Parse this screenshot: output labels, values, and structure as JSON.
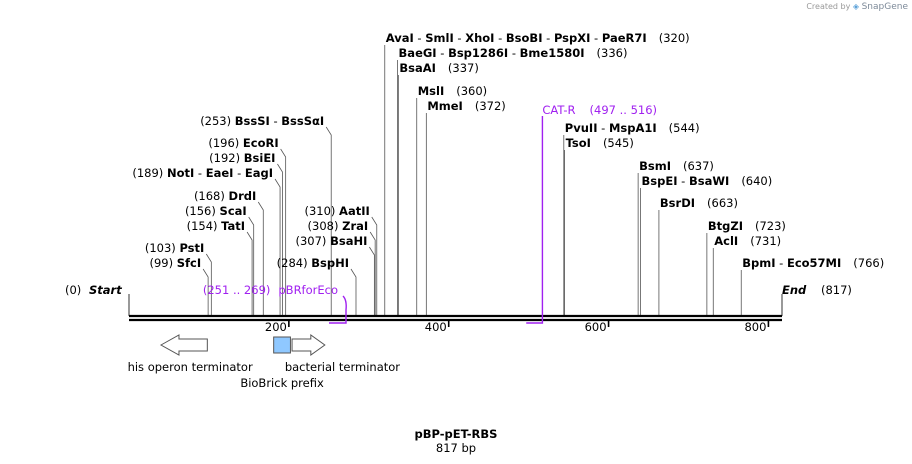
{
  "credit": {
    "prefix": "Created by",
    "brand": "SnapGene"
  },
  "map": {
    "title": "pBP-pET-RBS",
    "length_label": "817 bp",
    "total_bp": 817,
    "ticks": [
      "200",
      "400",
      "600",
      "800"
    ],
    "tick_values": [
      200,
      400,
      600,
      800
    ],
    "start": {
      "pos": "(0)",
      "name": "Start",
      "bp": 0
    },
    "end": {
      "name": "End",
      "pos": "(817)",
      "bp": 817
    }
  },
  "sites": [
    {
      "names": [
        "AvaI",
        "SmlI",
        "XhoI",
        "BsoBI",
        "PspXI",
        "PaeR7I"
      ],
      "pos": "(320)",
      "bp": 320,
      "side": "right"
    },
    {
      "names": [
        "BaeGI",
        "Bsp1286I",
        "Bme1580I"
      ],
      "pos": "(336)",
      "bp": 336,
      "side": "right"
    },
    {
      "names": [
        "BsaAI"
      ],
      "pos": "(337)",
      "bp": 337,
      "side": "right"
    },
    {
      "names": [
        "MslI"
      ],
      "pos": "(360)",
      "bp": 360,
      "side": "right"
    },
    {
      "names": [
        "MmeI"
      ],
      "pos": "(372)",
      "bp": 372,
      "side": "right"
    },
    {
      "names": [
        "PvuII",
        "MspA1I"
      ],
      "pos": "(544)",
      "bp": 544,
      "side": "right"
    },
    {
      "names": [
        "TsoI"
      ],
      "pos": "(545)",
      "bp": 545,
      "side": "right"
    },
    {
      "names": [
        "BsmI"
      ],
      "pos": "(637)",
      "bp": 637,
      "side": "right"
    },
    {
      "names": [
        "BspEI",
        "BsaWI"
      ],
      "pos": "(640)",
      "bp": 640,
      "side": "right"
    },
    {
      "names": [
        "BsrDI"
      ],
      "pos": "(663)",
      "bp": 663,
      "side": "right"
    },
    {
      "names": [
        "BtgZI"
      ],
      "pos": "(723)",
      "bp": 723,
      "side": "right"
    },
    {
      "names": [
        "AclI"
      ],
      "pos": "(731)",
      "bp": 731,
      "side": "right"
    },
    {
      "names": [
        "BpmI",
        "Eco57MI"
      ],
      "pos": "(766)",
      "bp": 766,
      "side": "right"
    },
    {
      "names": [
        "BssSI",
        "BssSαI"
      ],
      "pos": "(253)",
      "bp": 253,
      "side": "left"
    },
    {
      "names": [
        "EcoRI"
      ],
      "pos": "(196)",
      "bp": 196,
      "side": "left"
    },
    {
      "names": [
        "BsiEI"
      ],
      "pos": "(192)",
      "bp": 192,
      "side": "left"
    },
    {
      "names": [
        "NotI",
        "EaeI",
        "EagI"
      ],
      "pos": "(189)",
      "bp": 189,
      "side": "left"
    },
    {
      "names": [
        "DrdI"
      ],
      "pos": "(168)",
      "bp": 168,
      "side": "left"
    },
    {
      "names": [
        "ScaI"
      ],
      "pos": "(156)",
      "bp": 156,
      "side": "left"
    },
    {
      "names": [
        "TatI"
      ],
      "pos": "(154)",
      "bp": 154,
      "side": "left"
    },
    {
      "names": [
        "PstI"
      ],
      "pos": "(103)",
      "bp": 103,
      "side": "left"
    },
    {
      "names": [
        "SfcI"
      ],
      "pos": "(99)",
      "bp": 99,
      "side": "left"
    },
    {
      "names": [
        "AatII"
      ],
      "pos": "(310)",
      "bp": 310,
      "side": "left"
    },
    {
      "names": [
        "ZraI"
      ],
      "pos": "(308)",
      "bp": 308,
      "side": "left"
    },
    {
      "names": [
        "BsaHI"
      ],
      "pos": "(307)",
      "bp": 307,
      "side": "left"
    },
    {
      "names": [
        "BspHI"
      ],
      "pos": "(284)",
      "bp": 284,
      "side": "left"
    }
  ],
  "primers": [
    {
      "name": "CAT-R",
      "range": "(497 .. 516)",
      "from": 497,
      "to": 516
    },
    {
      "name": "pBRforEco",
      "range": "(251 .. 269)",
      "from": 251,
      "to": 269
    }
  ],
  "features": [
    {
      "name": "his operon terminator",
      "from": 40,
      "to": 98,
      "direction": "left",
      "color": "#ffffff"
    },
    {
      "name": "BioBrick prefix",
      "from": 181,
      "to": 202,
      "direction": "none",
      "color": "#8fc8ff"
    },
    {
      "name": "bacterial terminator",
      "from": 204,
      "to": 245,
      "direction": "right",
      "color": "#ffffff"
    }
  ]
}
